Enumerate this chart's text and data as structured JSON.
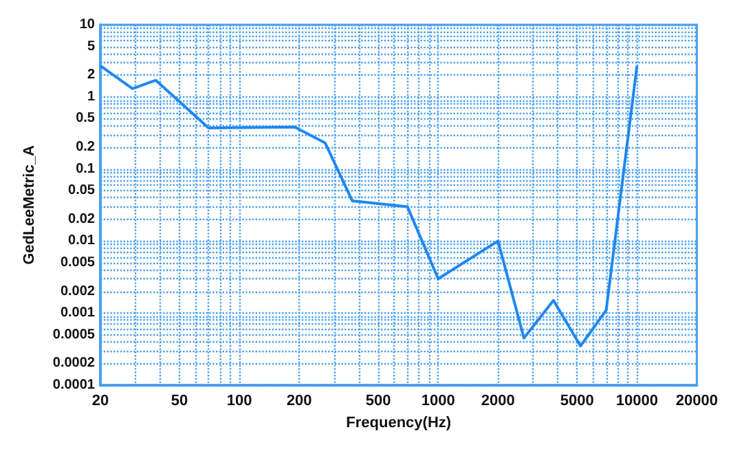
{
  "chart_data": {
    "type": "line",
    "xlabel": "Frequency(Hz)",
    "ylabel": "GedLeeMetric_A",
    "log": "xy",
    "grid": true,
    "marker": "none",
    "line_style": "solid",
    "x": [
      20,
      29,
      38,
      70,
      190,
      270,
      370,
      700,
      1000,
      2000,
      2700,
      3800,
      5200,
      7000,
      10000
    ],
    "series": [
      {
        "color": "#1e88f0",
        "values": [
          2.7,
          1.3,
          1.7,
          0.37,
          0.38,
          0.23,
          0.036,
          0.03,
          0.003,
          0.01,
          0.00045,
          0.0015,
          0.00035,
          0.0011,
          2.7
        ]
      }
    ],
    "xlim": [
      20,
      20000
    ],
    "ylim": [
      0.0001,
      10
    ],
    "xticks": [
      20,
      {
        "value": 30,
        "label": null
      },
      {
        "value": 40,
        "label": null
      },
      50,
      {
        "value": 60,
        "label": null
      },
      {
        "value": 70,
        "label": null
      },
      {
        "value": 80,
        "label": null
      },
      {
        "value": 90,
        "label": null
      },
      100,
      200,
      {
        "value": 300,
        "label": null
      },
      {
        "value": 400,
        "label": null
      },
      500,
      {
        "value": 600,
        "label": null
      },
      {
        "value": 700,
        "label": null
      },
      {
        "value": 800,
        "label": null
      },
      {
        "value": 900,
        "label": null
      },
      1000,
      2000,
      {
        "value": 3000,
        "label": null
      },
      {
        "value": 4000,
        "label": null
      },
      5000,
      {
        "value": 6000,
        "label": null
      },
      {
        "value": 7000,
        "label": null
      },
      {
        "value": 8000,
        "label": null
      },
      {
        "value": 9000,
        "label": null
      },
      10000,
      20000
    ],
    "yticks": [
      0.0001,
      0.0002,
      {
        "value": 0.0003,
        "label": null
      },
      {
        "value": 0.0004,
        "label": null
      },
      0.0005,
      {
        "value": 0.0006,
        "label": null
      },
      {
        "value": 0.0007,
        "label": null
      },
      {
        "value": 0.0008,
        "label": null
      },
      {
        "value": 0.0009,
        "label": null
      },
      0.001,
      0.002,
      {
        "value": 0.003,
        "label": null
      },
      {
        "value": 0.004,
        "label": null
      },
      0.005,
      {
        "value": 0.006,
        "label": null
      },
      {
        "value": 0.007,
        "label": null
      },
      {
        "value": 0.008,
        "label": null
      },
      {
        "value": 0.009,
        "label": null
      },
      0.01,
      0.02,
      {
        "value": 0.03,
        "label": null
      },
      {
        "value": 0.04,
        "label": null
      },
      0.05,
      {
        "value": 0.06,
        "label": null
      },
      {
        "value": 0.07,
        "label": null
      },
      {
        "value": 0.08,
        "label": null
      },
      {
        "value": 0.09,
        "label": null
      },
      0.1,
      0.2,
      {
        "value": 0.3,
        "label": null
      },
      {
        "value": 0.4,
        "label": null
      },
      0.5,
      {
        "value": 0.6,
        "label": null
      },
      {
        "value": 0.7,
        "label": null
      },
      {
        "value": 0.8,
        "label": null
      },
      {
        "value": 0.9,
        "label": null
      },
      1,
      2,
      {
        "value": 3,
        "label": null
      },
      {
        "value": 4,
        "label": null
      },
      5,
      {
        "value": 6,
        "label": null
      },
      {
        "value": 7,
        "label": null
      },
      {
        "value": 8,
        "label": null
      },
      {
        "value": 9,
        "label": null
      },
      10
    ]
  }
}
